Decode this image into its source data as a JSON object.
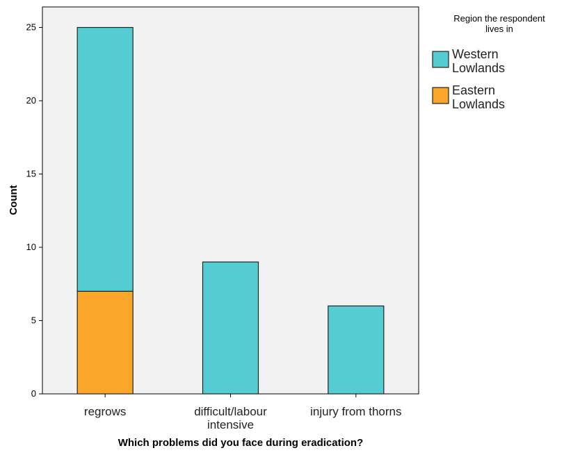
{
  "chart_data": {
    "type": "bar",
    "stacked": true,
    "categories": [
      "regrows",
      "difficult/labour intensive",
      "injury from thorns"
    ],
    "category_label_lines": [
      [
        "regrows"
      ],
      [
        "difficult/labour",
        "intensive"
      ],
      [
        "injury from thorns"
      ]
    ],
    "series": [
      {
        "name": "Eastern Lowlands",
        "color": "#F9A62B",
        "values": [
          7,
          0,
          0
        ]
      },
      {
        "name": "Western Lowlands",
        "color": "#55CCD2",
        "values": [
          18,
          9,
          6
        ]
      }
    ],
    "xlabel": "Which problems did you face during eradication?",
    "ylabel": "Count",
    "ylim": [
      0,
      26.4
    ],
    "yticks": [
      0,
      5,
      10,
      15,
      20,
      25
    ],
    "grid": false,
    "plot_background": "#F2F2F2",
    "legend": {
      "placement": "right",
      "title_lines": [
        "Region the respondent",
        "lives in"
      ],
      "entries": [
        {
          "label_lines": [
            "Western",
            "Lowlands"
          ],
          "color": "#55CCD2"
        },
        {
          "label_lines": [
            "Eastern",
            "Lowlands"
          ],
          "color": "#F9A62B"
        }
      ]
    }
  }
}
